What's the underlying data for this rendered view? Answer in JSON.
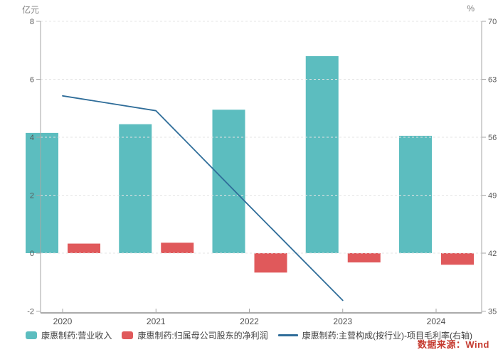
{
  "chart_data": {
    "type": "combo",
    "title": "",
    "categories": [
      "2020",
      "2021",
      "2022",
      "2023",
      "2024"
    ],
    "series": [
      {
        "key": "revenue",
        "name": "康惠制药:营业收入",
        "type": "bar",
        "axis": "left",
        "color": "#5CBDBF",
        "values": [
          4.15,
          4.45,
          4.95,
          6.8,
          4.05
        ]
      },
      {
        "key": "net-profit",
        "name": "康惠制药:归属母公司股东的净利润",
        "type": "bar",
        "axis": "left",
        "color": "#E0595B",
        "values": [
          0.33,
          0.36,
          -0.67,
          -0.32,
          -0.4
        ]
      },
      {
        "key": "gross-margin",
        "name": "康惠制药:主营构成(按行业)-项目毛利率(右轴)",
        "type": "line",
        "axis": "right",
        "color": "#2F6D99",
        "values": [
          61.0,
          59.2,
          47.7,
          36.3,
          null
        ]
      }
    ],
    "left_axis": {
      "label": "亿元",
      "min": -2,
      "max": 8,
      "ticks": [
        8,
        6,
        4,
        2,
        0,
        -2
      ]
    },
    "right_axis": {
      "label": "%",
      "min": 35,
      "max": 70,
      "ticks": [
        70,
        63,
        56,
        49,
        42,
        35
      ]
    },
    "grid": "dashed-horizontal",
    "legend_position": "bottom"
  },
  "source": {
    "text": "数据来源：Wind",
    "color": "#C53A2F"
  },
  "colors": {
    "background": "#FFFFFF",
    "grid": "#E4E4E4",
    "axis": "#A6A6A6",
    "x_axis": "#ABABAB",
    "tick_text": "#595959",
    "year_text": "#4D4D4D",
    "legend_text": "#404040",
    "unit_text": "#808080"
  }
}
